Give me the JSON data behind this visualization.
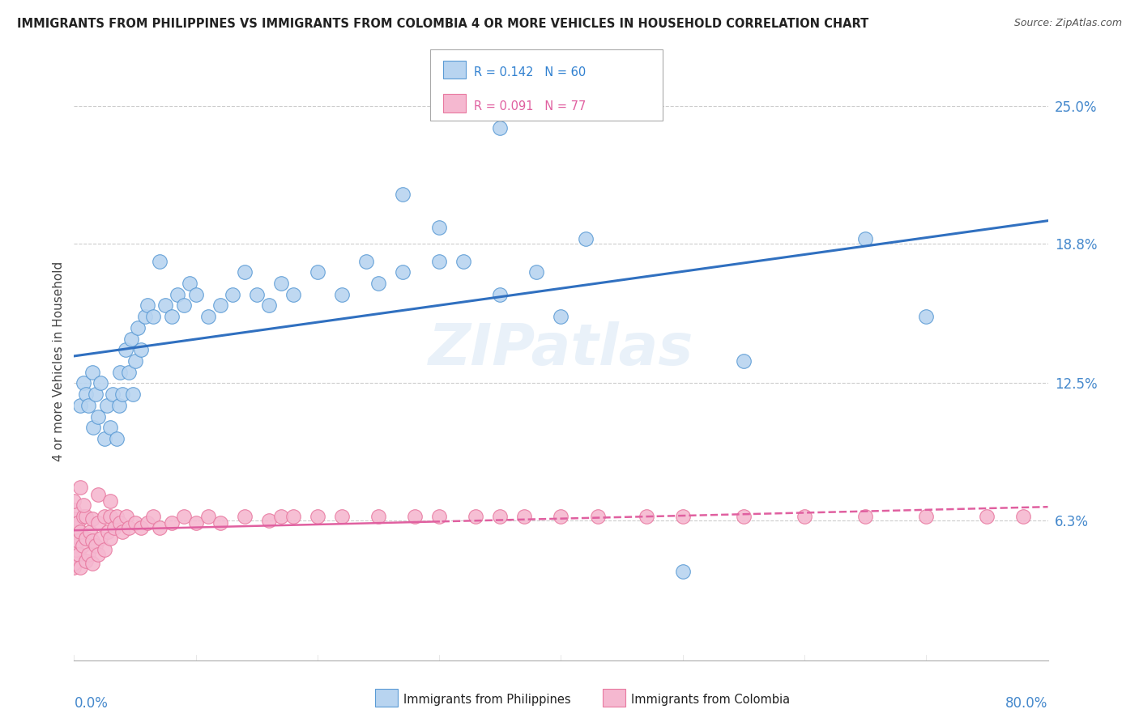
{
  "title": "IMMIGRANTS FROM PHILIPPINES VS IMMIGRANTS FROM COLOMBIA 4 OR MORE VEHICLES IN HOUSEHOLD CORRELATION CHART",
  "source": "Source: ZipAtlas.com",
  "ylabel": "4 or more Vehicles in Household",
  "ytick_values": [
    0.063,
    0.125,
    0.188,
    0.25
  ],
  "ytick_labels": [
    "6.3%",
    "12.5%",
    "18.8%",
    "25.0%"
  ],
  "xlim": [
    0.0,
    0.8
  ],
  "ylim": [
    0.0,
    0.27
  ],
  "watermark": "ZIPatlas",
  "legend_R1": "R = 0.142",
  "legend_N1": "N = 60",
  "legend_R2": "R = 0.091",
  "legend_N2": "N = 77",
  "color_philippines": "#b8d4f0",
  "color_colombia": "#f5b8d0",
  "color_philippines_edge": "#5b9bd5",
  "color_colombia_edge": "#e879a0",
  "color_philippines_line": "#3070c0",
  "color_colombia_line": "#e060a0",
  "philippines_x": [
    0.005,
    0.008,
    0.01,
    0.012,
    0.015,
    0.016,
    0.018,
    0.02,
    0.022,
    0.025,
    0.027,
    0.03,
    0.032,
    0.035,
    0.037,
    0.038,
    0.04,
    0.042,
    0.045,
    0.047,
    0.048,
    0.05,
    0.052,
    0.055,
    0.058,
    0.06,
    0.065,
    0.07,
    0.075,
    0.08,
    0.085,
    0.09,
    0.095,
    0.1,
    0.11,
    0.12,
    0.13,
    0.14,
    0.15,
    0.16,
    0.17,
    0.18,
    0.2,
    0.22,
    0.24,
    0.25,
    0.27,
    0.3,
    0.35,
    0.4,
    0.27,
    0.3,
    0.32,
    0.35,
    0.38,
    0.42,
    0.5,
    0.55,
    0.65,
    0.7
  ],
  "philippines_y": [
    0.115,
    0.125,
    0.12,
    0.115,
    0.13,
    0.105,
    0.12,
    0.11,
    0.125,
    0.1,
    0.115,
    0.105,
    0.12,
    0.1,
    0.115,
    0.13,
    0.12,
    0.14,
    0.13,
    0.145,
    0.12,
    0.135,
    0.15,
    0.14,
    0.155,
    0.16,
    0.155,
    0.18,
    0.16,
    0.155,
    0.165,
    0.16,
    0.17,
    0.165,
    0.155,
    0.16,
    0.165,
    0.175,
    0.165,
    0.16,
    0.17,
    0.165,
    0.175,
    0.165,
    0.18,
    0.17,
    0.175,
    0.18,
    0.165,
    0.155,
    0.21,
    0.195,
    0.18,
    0.24,
    0.175,
    0.19,
    0.04,
    0.135,
    0.19,
    0.155
  ],
  "colombia_x": [
    0.0,
    0.0,
    0.0,
    0.0,
    0.0,
    0.0,
    0.0,
    0.0,
    0.0,
    0.0,
    0.002,
    0.003,
    0.003,
    0.004,
    0.005,
    0.005,
    0.007,
    0.008,
    0.01,
    0.01,
    0.01,
    0.012,
    0.013,
    0.015,
    0.015,
    0.015,
    0.018,
    0.02,
    0.02,
    0.022,
    0.025,
    0.025,
    0.028,
    0.03,
    0.03,
    0.033,
    0.035,
    0.038,
    0.04,
    0.043,
    0.045,
    0.05,
    0.055,
    0.06,
    0.065,
    0.07,
    0.08,
    0.09,
    0.1,
    0.11,
    0.12,
    0.14,
    0.16,
    0.17,
    0.18,
    0.2,
    0.22,
    0.25,
    0.28,
    0.3,
    0.33,
    0.35,
    0.37,
    0.4,
    0.43,
    0.47,
    0.5,
    0.55,
    0.6,
    0.65,
    0.7,
    0.75,
    0.78,
    0.02,
    0.03,
    0.005,
    0.008
  ],
  "colombia_y": [
    0.042,
    0.048,
    0.052,
    0.056,
    0.06,
    0.064,
    0.068,
    0.072,
    0.044,
    0.058,
    0.05,
    0.054,
    0.062,
    0.048,
    0.042,
    0.058,
    0.052,
    0.065,
    0.045,
    0.055,
    0.065,
    0.048,
    0.058,
    0.044,
    0.054,
    0.064,
    0.052,
    0.048,
    0.062,
    0.055,
    0.05,
    0.065,
    0.058,
    0.055,
    0.065,
    0.06,
    0.065,
    0.062,
    0.058,
    0.065,
    0.06,
    0.062,
    0.06,
    0.062,
    0.065,
    0.06,
    0.062,
    0.065,
    0.062,
    0.065,
    0.062,
    0.065,
    0.063,
    0.065,
    0.065,
    0.065,
    0.065,
    0.065,
    0.065,
    0.065,
    0.065,
    0.065,
    0.065,
    0.065,
    0.065,
    0.065,
    0.065,
    0.065,
    0.065,
    0.065,
    0.065,
    0.065,
    0.065,
    0.075,
    0.072,
    0.078,
    0.07
  ]
}
